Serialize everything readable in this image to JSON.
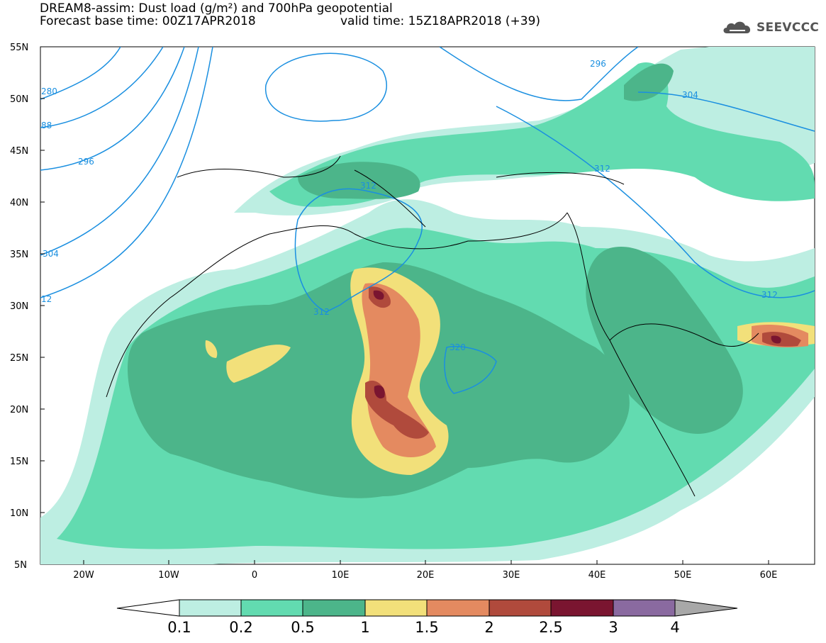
{
  "header": {
    "title_line1": "DREAM8-assim: Dust load (g/m²) and 700hPa geopotential",
    "title_line2_left": "Forecast base time: 00Z17APR2018",
    "title_line2_right": "valid time: 15Z18APR2018 (+39)"
  },
  "logo": {
    "text": "SEEVCCC",
    "icon": "cloud-icon"
  },
  "map": {
    "lat_labels": [
      "55N",
      "50N",
      "45N",
      "40N",
      "35N",
      "30N",
      "25N",
      "20N",
      "15N",
      "10N",
      "5N"
    ],
    "lon_labels": [
      "20W",
      "10W",
      "0",
      "10E",
      "20E",
      "30E",
      "40E",
      "50E",
      "60E"
    ],
    "contour_labels": [
      "280",
      "88",
      "296",
      "304",
      "12",
      "312",
      "312",
      "320",
      "296",
      "304",
      "312",
      "312"
    ],
    "contour_color": "#1a8fe0"
  },
  "colorbar": {
    "ticks": [
      "0.1",
      "0.2",
      "0.5",
      "1",
      "1.5",
      "2",
      "2.5",
      "3",
      "4"
    ],
    "colors": [
      "#ffffff",
      "#bdeee2",
      "#62dbb0",
      "#4cb58a",
      "#f2e07a",
      "#e48a60",
      "#b04a3c",
      "#7a1530",
      "#8a6aa0",
      "#a8a8a8"
    ]
  }
}
